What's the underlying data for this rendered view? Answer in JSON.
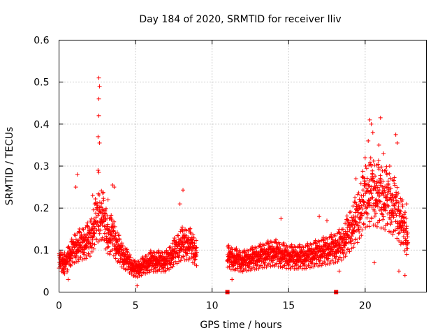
{
  "chart_data": {
    "type": "scatter",
    "title": "Day 184 of 2020, SRMTID for receiver lliv",
    "xlabel": "GPS time / hours",
    "ylabel": "SRMTID / TECUs",
    "xlim": [
      0,
      24
    ],
    "ylim": [
      0,
      0.6
    ],
    "x_ticks": [
      0,
      5,
      10,
      15,
      20
    ],
    "x_tick_labels": [
      "0",
      "5",
      "10",
      "15",
      "20"
    ],
    "y_ticks": [
      0,
      0.1,
      0.2,
      0.3,
      0.4,
      0.5,
      0.6
    ],
    "y_tick_labels": [
      "0",
      "0.1",
      "0.2",
      "0.3",
      "0.4",
      "0.5",
      "0.6"
    ],
    "grid": true,
    "marker": "plus",
    "color": "#ff0000",
    "data_gap_markers_x": [
      11.0,
      18.1
    ],
    "data_segments": [
      {
        "x_start": 0.0,
        "x_end": 9.0
      },
      {
        "x_start": 11.0,
        "x_end": 22.8
      }
    ],
    "envelope": [
      {
        "x": 0.0,
        "y": 0.07
      },
      {
        "x": 0.5,
        "y": 0.07
      },
      {
        "x": 1.0,
        "y": 0.1
      },
      {
        "x": 1.5,
        "y": 0.11
      },
      {
        "x": 2.0,
        "y": 0.12
      },
      {
        "x": 2.5,
        "y": 0.17
      },
      {
        "x": 2.8,
        "y": 0.18
      },
      {
        "x": 3.2,
        "y": 0.13
      },
      {
        "x": 3.5,
        "y": 0.13
      },
      {
        "x": 4.0,
        "y": 0.09
      },
      {
        "x": 4.5,
        "y": 0.07
      },
      {
        "x": 5.0,
        "y": 0.05
      },
      {
        "x": 5.5,
        "y": 0.06
      },
      {
        "x": 6.0,
        "y": 0.07
      },
      {
        "x": 6.5,
        "y": 0.07
      },
      {
        "x": 7.0,
        "y": 0.07
      },
      {
        "x": 7.5,
        "y": 0.09
      },
      {
        "x": 8.0,
        "y": 0.11
      },
      {
        "x": 8.5,
        "y": 0.11
      },
      {
        "x": 9.0,
        "y": 0.09
      },
      {
        "x": 11.0,
        "y": 0.08
      },
      {
        "x": 12.0,
        "y": 0.07
      },
      {
        "x": 13.0,
        "y": 0.08
      },
      {
        "x": 14.0,
        "y": 0.09
      },
      {
        "x": 15.0,
        "y": 0.08
      },
      {
        "x": 16.0,
        "y": 0.08
      },
      {
        "x": 17.0,
        "y": 0.09
      },
      {
        "x": 18.0,
        "y": 0.1
      },
      {
        "x": 18.5,
        "y": 0.11
      },
      {
        "x": 19.0,
        "y": 0.14
      },
      {
        "x": 19.5,
        "y": 0.17
      },
      {
        "x": 20.0,
        "y": 0.22
      },
      {
        "x": 20.5,
        "y": 0.23
      },
      {
        "x": 21.0,
        "y": 0.22
      },
      {
        "x": 21.5,
        "y": 0.21
      },
      {
        "x": 22.0,
        "y": 0.19
      },
      {
        "x": 22.5,
        "y": 0.15
      },
      {
        "x": 22.8,
        "y": 0.12
      }
    ],
    "spikes": [
      {
        "x": 0.6,
        "y": 0.03
      },
      {
        "x": 1.1,
        "y": 0.25
      },
      {
        "x": 1.2,
        "y": 0.28
      },
      {
        "x": 2.6,
        "y": 0.51
      },
      {
        "x": 2.65,
        "y": 0.49
      },
      {
        "x": 2.6,
        "y": 0.46
      },
      {
        "x": 2.6,
        "y": 0.42
      },
      {
        "x": 2.55,
        "y": 0.37
      },
      {
        "x": 2.65,
        "y": 0.355
      },
      {
        "x": 2.55,
        "y": 0.29
      },
      {
        "x": 2.6,
        "y": 0.285
      },
      {
        "x": 2.2,
        "y": 0.23
      },
      {
        "x": 3.5,
        "y": 0.255
      },
      {
        "x": 3.6,
        "y": 0.25
      },
      {
        "x": 3.2,
        "y": 0.22
      },
      {
        "x": 5.1,
        "y": 0.015
      },
      {
        "x": 8.1,
        "y": 0.243
      },
      {
        "x": 7.9,
        "y": 0.21
      },
      {
        "x": 20.3,
        "y": 0.41
      },
      {
        "x": 20.4,
        "y": 0.4
      },
      {
        "x": 20.5,
        "y": 0.38
      },
      {
        "x": 20.2,
        "y": 0.36
      },
      {
        "x": 21.0,
        "y": 0.415
      },
      {
        "x": 20.9,
        "y": 0.35
      },
      {
        "x": 20.0,
        "y": 0.32
      },
      {
        "x": 21.2,
        "y": 0.33
      },
      {
        "x": 21.6,
        "y": 0.3
      },
      {
        "x": 22.0,
        "y": 0.375
      },
      {
        "x": 22.1,
        "y": 0.355
      },
      {
        "x": 19.4,
        "y": 0.27
      },
      {
        "x": 20.6,
        "y": 0.07
      },
      {
        "x": 22.2,
        "y": 0.05
      },
      {
        "x": 22.6,
        "y": 0.04
      },
      {
        "x": 22.7,
        "y": 0.21
      },
      {
        "x": 14.5,
        "y": 0.175
      },
      {
        "x": 17.0,
        "y": 0.18
      },
      {
        "x": 17.5,
        "y": 0.17
      },
      {
        "x": 18.3,
        "y": 0.05
      },
      {
        "x": 11.3,
        "y": 0.03
      }
    ]
  }
}
